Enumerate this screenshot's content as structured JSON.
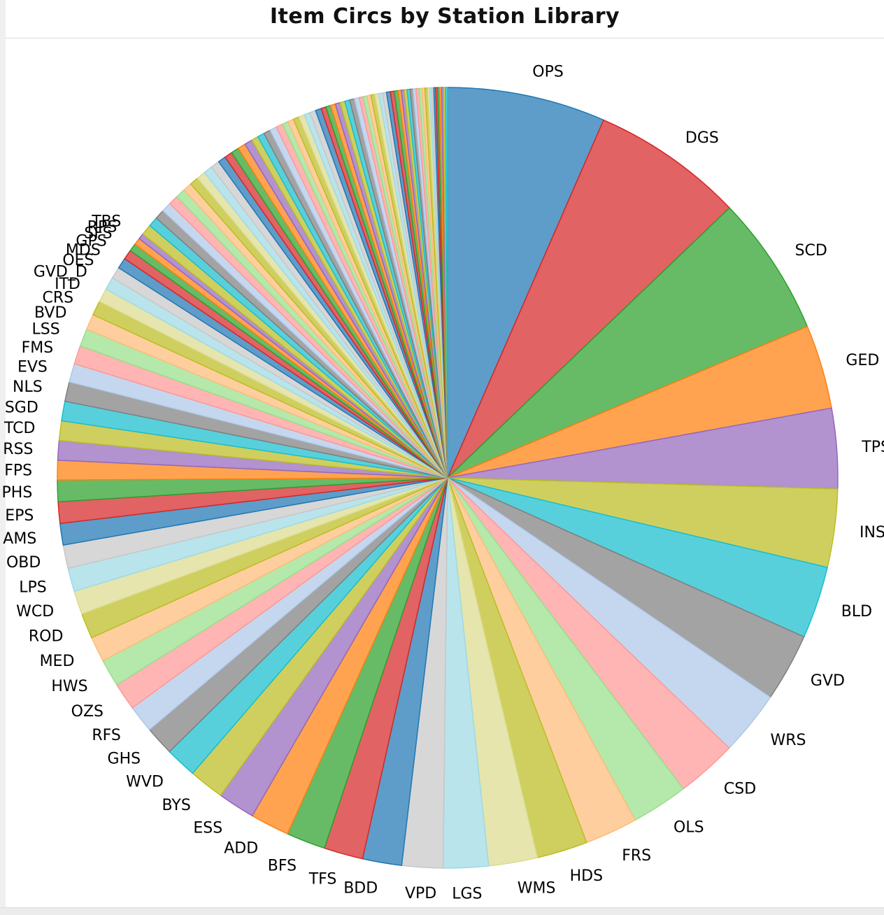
{
  "chart_data": {
    "type": "pie",
    "title": "Item Circs by Station Library",
    "labels_shown": [
      "OPS",
      "DGS",
      "SCD",
      "GED",
      "TPS",
      "INS",
      "BLD",
      "GVD",
      "WRS",
      "CSD",
      "OLS",
      "FRS",
      "HDS",
      "WMS",
      "LGS",
      "VPD",
      "BDD",
      "TFS",
      "BFS",
      "ADD",
      "ESS",
      "BYS",
      "WVD",
      "GHS",
      "RFS",
      "OZS",
      "HWS",
      "MED",
      "ROD",
      "WCD",
      "LPS",
      "OBD",
      "AMS",
      "EPS",
      "PHS",
      "FPS",
      "RSS",
      "TCD",
      "SGD",
      "NLS",
      "EVS",
      "FMS",
      "LSS",
      "BVD",
      "CRS",
      "ITD",
      "GVD_D",
      "OES",
      "MDS",
      "GPS",
      "SFS",
      "RPS",
      "TBS"
    ],
    "labelled_values": [
      8.1,
      7.8,
      7.2,
      4.3,
      4.1,
      4.0,
      3.7,
      3.5,
      3.3,
      3.1,
      2.9,
      2.7,
      2.6,
      2.5,
      2.3,
      2.1,
      2.0,
      2.0,
      2.0,
      2.0,
      1.9,
      1.8,
      1.6,
      1.5,
      1.4,
      1.4,
      1.4,
      1.3,
      1.3,
      1.2,
      1.2,
      1.2,
      1.1,
      1.1,
      1.1,
      1.0,
      1.0,
      1.0,
      1.0,
      1.0,
      0.95,
      0.95,
      0.9,
      0.8,
      0.75,
      0.7,
      0.65,
      0.6,
      0.55,
      0.5,
      0.4,
      0.35,
      0.3
    ],
    "unlabelled_small_values": [
      0.55,
      0.5,
      0.5,
      0.5,
      0.5,
      0.5,
      0.45,
      0.45,
      0.45,
      0.45,
      0.45,
      0.4,
      0.4,
      0.4,
      0.4,
      0.4,
      0.35,
      0.35,
      0.35,
      0.35,
      0.35,
      0.3,
      0.3,
      0.3,
      0.3,
      0.3,
      0.3,
      0.3,
      0.25,
      0.25,
      0.25,
      0.25,
      0.25,
      0.25,
      0.25,
      0.25,
      0.2,
      0.2,
      0.2,
      0.2,
      0.2,
      0.2,
      0.2,
      0.2,
      0.2,
      0.2,
      0.15,
      0.15,
      0.15,
      0.15,
      0.15,
      0.15,
      0.15,
      0.15,
      0.15,
      0.15,
      0.1,
      0.1,
      0.1,
      0.1,
      0.1,
      0.1,
      0.1,
      0.1,
      0.1,
      0.1
    ],
    "start": "12 o'clock",
    "direction": "clockwise",
    "palette": [
      "#1f77b4",
      "#d62728",
      "#2ca02c",
      "#ff7f0e",
      "#9467bd",
      "#bcbd22",
      "#17becf",
      "#7f7f7f",
      "#aec7e8",
      "#ff9896",
      "#98df8a",
      "#ffbb78",
      "#bcbd22",
      "#dbdb8d",
      "#9edae5",
      "#c7c7c7"
    ],
    "legend": "none"
  }
}
